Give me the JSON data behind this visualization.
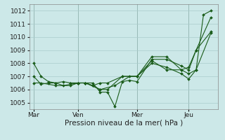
{
  "bg_color": "#cce8e8",
  "grid_color": "#aacccc",
  "line_color": "#1a5c1a",
  "line_width": 0.8,
  "marker": "D",
  "marker_size": 2.0,
  "xlabel": "Pression niveau de la mer( hPa )",
  "xlabel_fontsize": 7.5,
  "tick_fontsize": 6.5,
  "ylim": [
    1004.5,
    1012.5
  ],
  "yticks": [
    1005,
    1006,
    1007,
    1008,
    1009,
    1010,
    1011,
    1012
  ],
  "day_labels": [
    "Mar",
    "Ven",
    "Mer",
    "Jeu"
  ],
  "day_positions": [
    0.0,
    3.0,
    7.0,
    10.5
  ],
  "xlim": [
    -0.3,
    12.5
  ],
  "vline_color": "#4a6a5a",
  "vline_positions": [
    0.0,
    3.0,
    7.0,
    10.5
  ],
  "lines": [
    {
      "x": [
        0,
        0.5,
        1.0,
        1.5,
        2.0,
        2.5,
        3.0,
        3.5,
        4.0,
        4.5,
        5.0,
        5.5,
        6.0,
        6.5,
        7.0,
        8.0,
        9.0,
        10.0,
        10.5,
        11.0,
        12.0
      ],
      "y": [
        1008.0,
        1007.0,
        1006.6,
        1006.5,
        1006.6,
        1006.5,
        1006.5,
        1006.5,
        1006.5,
        1005.8,
        1005.8,
        1004.7,
        1006.6,
        1006.7,
        1006.6,
        1008.3,
        1008.3,
        1007.8,
        1007.5,
        1009.0,
        1011.5
      ]
    },
    {
      "x": [
        0,
        0.5,
        1.0,
        1.5,
        2.0,
        3.0,
        3.5,
        4.0,
        4.5,
        5.0,
        6.0,
        7.0,
        8.0,
        9.0,
        10.0,
        10.5,
        11.0,
        11.5,
        12.0
      ],
      "y": [
        1007.0,
        1006.4,
        1006.5,
        1006.5,
        1006.3,
        1006.5,
        1006.5,
        1006.3,
        1006.5,
        1006.5,
        1007.0,
        1007.0,
        1008.2,
        1007.5,
        1007.5,
        1007.2,
        1007.5,
        1011.7,
        1012.0
      ]
    },
    {
      "x": [
        0,
        0.5,
        1.5,
        2.5,
        3.0,
        3.5,
        4.5,
        5.5,
        6.5,
        7.0,
        8.0,
        9.0,
        10.0,
        10.5,
        11.0,
        12.0
      ],
      "y": [
        1006.5,
        1006.5,
        1006.3,
        1006.3,
        1006.5,
        1006.5,
        1006.0,
        1006.3,
        1007.0,
        1007.0,
        1008.0,
        1007.7,
        1007.2,
        1006.8,
        1007.5,
        1010.3
      ]
    },
    {
      "x": [
        2.5,
        3.0,
        3.5,
        4.0,
        4.5,
        5.0,
        6.0,
        7.0,
        8.0,
        9.0,
        10.0,
        10.5,
        11.0,
        12.0
      ],
      "y": [
        1006.5,
        1006.5,
        1006.5,
        1006.3,
        1006.0,
        1006.0,
        1007.0,
        1007.0,
        1008.5,
        1008.5,
        1007.5,
        1007.7,
        1009.0,
        1010.4
      ]
    }
  ]
}
